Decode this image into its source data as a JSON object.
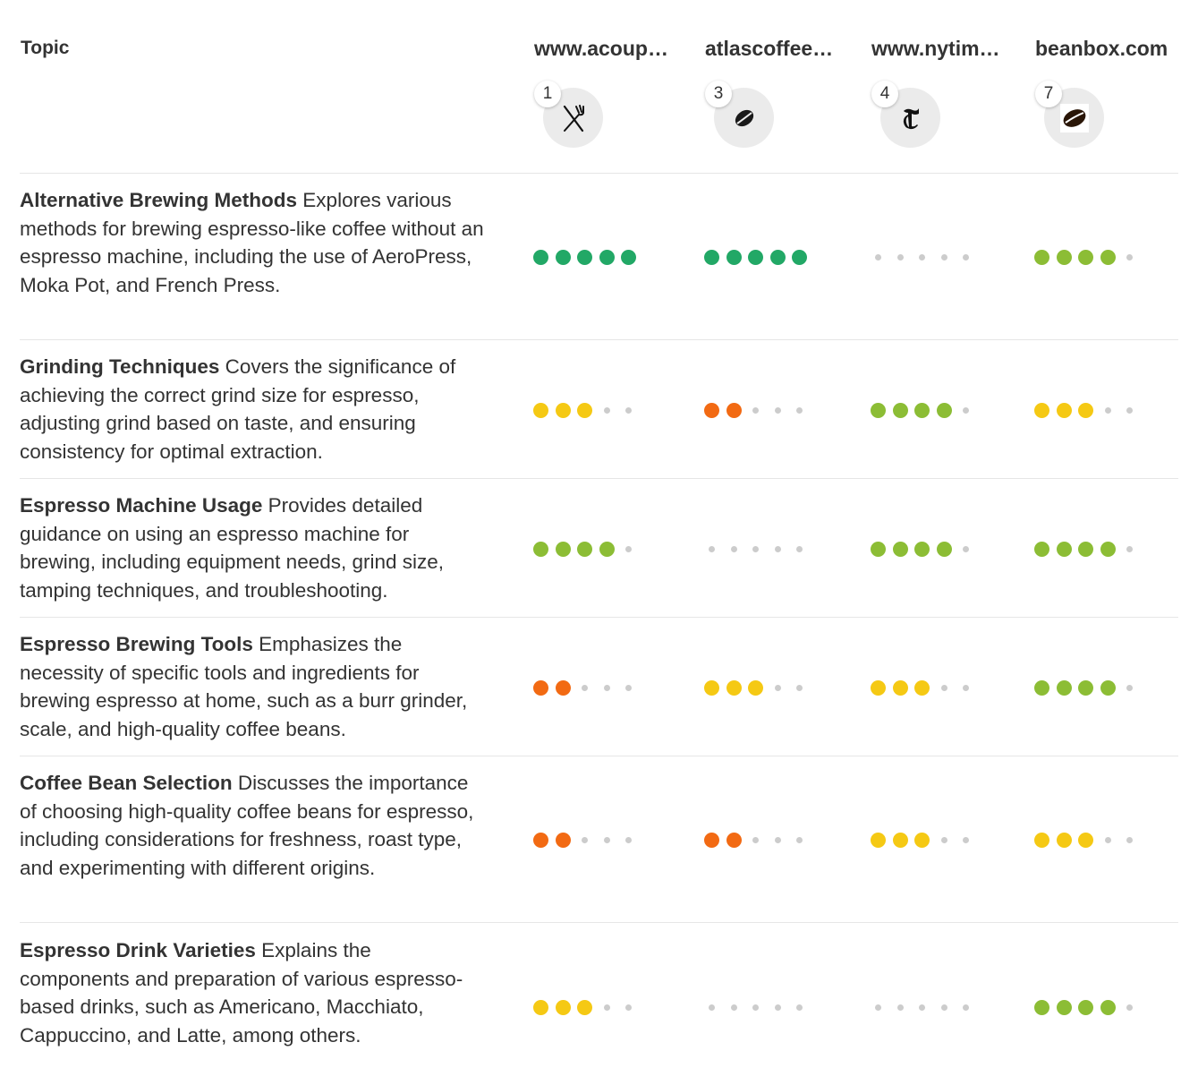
{
  "header": {
    "topic_label": "Topic"
  },
  "sources": [
    {
      "name": "www.acoup…",
      "rank": "1",
      "icon": "fork-knife-icon"
    },
    {
      "name": "atlascoffee…",
      "rank": "3",
      "icon": "coffee-bean-icon"
    },
    {
      "name": "www.nytim…",
      "rank": "4",
      "icon": "nyt-logo-icon"
    },
    {
      "name": "beanbox.com",
      "rank": "7",
      "icon": "coffee-bean-icon"
    }
  ],
  "rating_colors": {
    "5": "#22a866",
    "4": "#8cbd35",
    "3": "#f5c914",
    "2": "#f26a13",
    "empty": "#cccccc"
  },
  "rows": [
    {
      "title": "Alternative Brewing Methods",
      "desc": " Explores various methods for brewing espresso-like coffee without an espresso machine, including the use of AeroPress, Moka Pot, and French Press.",
      "ratings": [
        5,
        5,
        0,
        4
      ]
    },
    {
      "title": "Grinding Techniques",
      "desc": " Covers the significance of achieving the correct grind size for espresso, adjusting grind based on taste, and ensuring consistency for optimal extraction.",
      "ratings": [
        3,
        2,
        4,
        3
      ]
    },
    {
      "title": "Espresso Machine Usage",
      "desc": " Provides detailed guidance on using an espresso machine for brewing, including equipment needs, grind size, tamping techniques, and troubleshooting.",
      "ratings": [
        4,
        0,
        4,
        4
      ]
    },
    {
      "title": "Espresso Brewing Tools",
      "desc": " Emphasizes the necessity of specific tools and ingredients for brewing espresso at home, such as a burr grinder, scale, and high-quality coffee beans.",
      "ratings": [
        2,
        3,
        3,
        4
      ]
    },
    {
      "title": "Coffee Bean Selection",
      "desc": " Discusses the importance of choosing high-quality coffee beans for espresso, including considerations for freshness, roast type, and experimenting with different origins.",
      "ratings": [
        2,
        2,
        3,
        3
      ]
    },
    {
      "title": "Espresso Drink Varieties",
      "desc": " Explains the components and preparation of various espresso-based drinks, such as Americano, Macchiato, Cappuccino, and Latte, among others.",
      "ratings": [
        3,
        0,
        0,
        4
      ]
    }
  ]
}
